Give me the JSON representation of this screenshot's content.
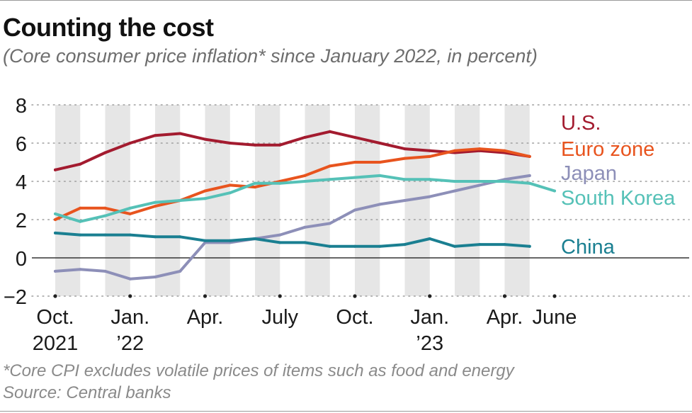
{
  "title": "Counting the cost",
  "subtitle": "(Core consumer price inflation* since January 2022, in percent)",
  "footnote": "*Core CPI excludes volatile prices of items such as food and energy",
  "source": "Source: Central banks",
  "chart_data": {
    "type": "line",
    "title": "Counting the cost",
    "subtitle": "(Core consumer price inflation* since January 2022, in percent)",
    "xlabel": "",
    "ylabel": "",
    "x_range": [
      0,
      20
    ],
    "ylim": [
      -2,
      8
    ],
    "y_ticks": [
      {
        "value": 8,
        "label": "8"
      },
      {
        "value": 6,
        "label": "6"
      },
      {
        "value": 4,
        "label": "4"
      },
      {
        "value": 2,
        "label": "2"
      },
      {
        "value": 0,
        "label": "0"
      },
      {
        "value": -2,
        "label": "−2"
      }
    ],
    "x_ticks": [
      {
        "index": 0,
        "line1": "Oct.",
        "line2": "2021"
      },
      {
        "index": 3,
        "line1": "Jan.",
        "line2": "’22"
      },
      {
        "index": 6,
        "line1": "Apr.",
        "line2": ""
      },
      {
        "index": 9,
        "line1": "July",
        "line2": ""
      },
      {
        "index": 12,
        "line1": "Oct.",
        "line2": ""
      },
      {
        "index": 15,
        "line1": "Jan.",
        "line2": "’23"
      },
      {
        "index": 18,
        "line1": "Apr.",
        "line2": ""
      },
      {
        "index": 20,
        "line1": "June",
        "line2": ""
      }
    ],
    "shaded_months": [
      0,
      2,
      4,
      6,
      8,
      10,
      12,
      14,
      16,
      18
    ],
    "series": [
      {
        "name": "U.S.",
        "color": "#a31b2f",
        "values": [
          4.6,
          4.9,
          5.5,
          6.0,
          6.4,
          6.5,
          6.2,
          6.0,
          5.9,
          5.9,
          6.3,
          6.6,
          6.3,
          6.0,
          5.7,
          5.6,
          5.5,
          5.6,
          5.5,
          5.3
        ]
      },
      {
        "name": "Euro zone",
        "color": "#e8541e",
        "values": [
          2.0,
          2.6,
          2.6,
          2.3,
          2.7,
          3.0,
          3.5,
          3.8,
          3.7,
          4.0,
          4.3,
          4.8,
          5.0,
          5.0,
          5.2,
          5.3,
          5.6,
          5.7,
          5.6,
          5.3
        ]
      },
      {
        "name": "Japan",
        "color": "#8d8fb8",
        "values": [
          -0.7,
          -0.6,
          -0.7,
          -1.1,
          -1.0,
          -0.7,
          0.8,
          0.8,
          1.0,
          1.2,
          1.6,
          1.8,
          2.5,
          2.8,
          3.0,
          3.2,
          3.5,
          3.8,
          4.1,
          4.3
        ]
      },
      {
        "name": "South Korea",
        "color": "#55c1b7",
        "values": [
          2.3,
          1.9,
          2.2,
          2.6,
          2.9,
          3.0,
          3.1,
          3.4,
          3.9,
          3.9,
          4.0,
          4.1,
          4.2,
          4.3,
          4.1,
          4.1,
          4.0,
          4.0,
          4.0,
          3.9,
          3.5
        ]
      },
      {
        "name": "China",
        "color": "#1a7f91",
        "values": [
          1.3,
          1.2,
          1.2,
          1.2,
          1.1,
          1.1,
          0.9,
          0.9,
          1.0,
          0.8,
          0.8,
          0.6,
          0.6,
          0.6,
          0.7,
          1.0,
          0.6,
          0.7,
          0.7,
          0.6
        ]
      }
    ]
  }
}
